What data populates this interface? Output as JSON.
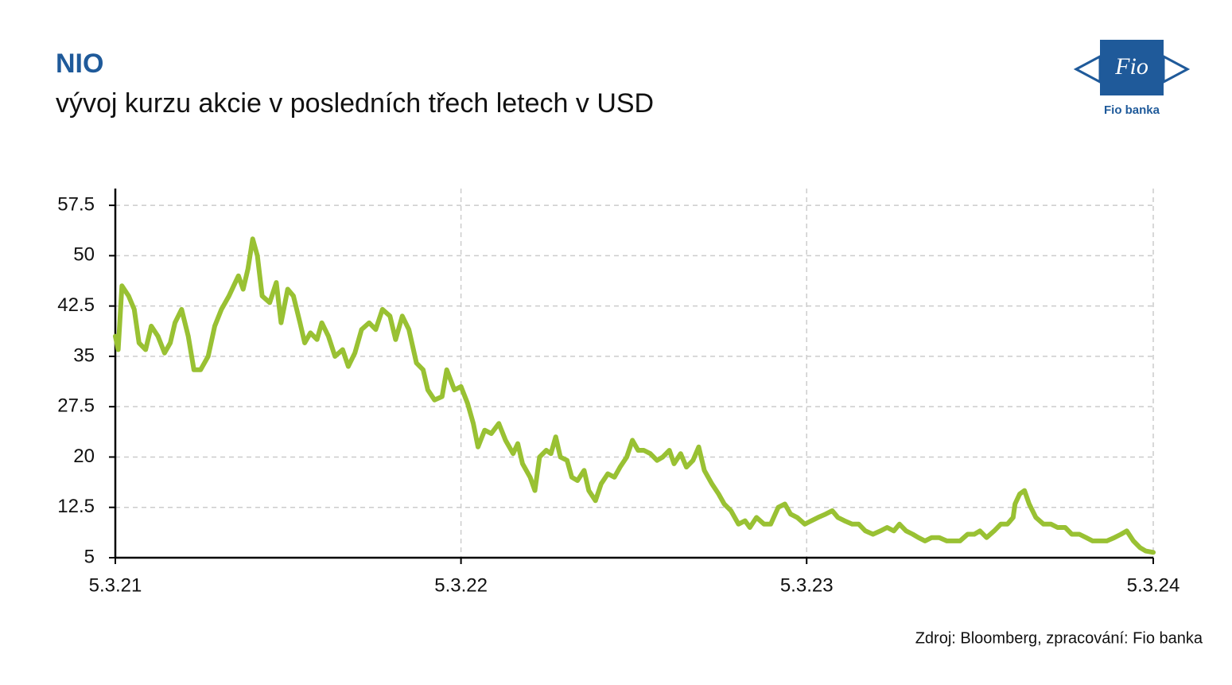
{
  "chart_data": {
    "type": "line",
    "title": "NIO",
    "subtitle": "vývoj kurzu akcie v posledních třech letech v USD",
    "source": "Zdroj: Bloomberg, zpracování: Fio banka",
    "x": [
      0,
      3,
      7,
      14,
      20,
      25,
      32,
      38,
      45,
      52,
      58,
      63,
      70,
      77,
      83,
      90,
      98,
      105,
      112,
      120,
      125,
      130,
      135,
      140,
      145,
      150,
      155,
      163,
      170,
      175,
      182,
      188,
      195,
      200,
      206,
      213,
      218,
      225,
      232,
      240,
      246,
      253,
      260,
      268,
      275,
      282,
      290,
      296,
      303,
      310,
      318,
      325,
      330,
      337,
      345,
      350,
      358,
      365,
      372,
      378,
      383,
      390,
      397,
      405,
      412,
      420,
      425,
      430,
      438,
      443,
      448,
      455,
      460,
      465,
      470,
      477,
      482,
      488,
      495,
      500,
      507,
      513,
      520,
      527,
      533,
      540,
      546,
      552,
      558,
      565,
      572,
      578,
      585,
      590,
      597,
      603,
      610,
      616,
      622,
      630,
      637,
      643,
      650,
      658,
      665,
      670,
      677,
      685,
      692,
      700,
      707,
      713,
      720,
      728,
      735,
      742,
      750,
      757,
      763,
      770,
      778,
      785,
      792,
      800,
      808,
      815,
      822,
      828,
      835,
      842,
      848,
      855,
      862,
      870,
      878,
      885,
      892,
      900,
      907,
      913,
      920,
      928,
      935,
      942,
      948,
      950,
      955,
      960,
      965,
      972,
      980,
      988,
      995,
      1003,
      1010,
      1018,
      1025,
      1032,
      1040,
      1047,
      1055,
      1062,
      1068,
      1075,
      1082,
      1088,
      1096
    ],
    "series": [
      {
        "name": "NIO",
        "color": "#99c133",
        "values": [
          38,
          36,
          45.5,
          44,
          42,
          37,
          36,
          39.5,
          38,
          35.5,
          37,
          40,
          42,
          38,
          33,
          33,
          35,
          39.5,
          42,
          44,
          45.5,
          47,
          45,
          48,
          52.5,
          50,
          44,
          43,
          46,
          40,
          45,
          44,
          40,
          37,
          38.5,
          37.5,
          40,
          38,
          35,
          36,
          33.5,
          35.5,
          39,
          40,
          39,
          42,
          41,
          37.5,
          41,
          39,
          34,
          33,
          30,
          28.5,
          29,
          33,
          30,
          30.5,
          28,
          25,
          21.5,
          24,
          23.5,
          25,
          22.5,
          20.5,
          22,
          19,
          17,
          15,
          20,
          21,
          20.5,
          23,
          20,
          19.5,
          17,
          16.5,
          18,
          15,
          13.5,
          16,
          17.5,
          17,
          18.5,
          20,
          22.5,
          21,
          21,
          20.5,
          19.5,
          20,
          21,
          19,
          20.5,
          18.5,
          19.5,
          21.5,
          18,
          16,
          14.5,
          13,
          12,
          10,
          10.5,
          9.5,
          11,
          10,
          10,
          12.5,
          13,
          11.5,
          11,
          10,
          10.5,
          11,
          11.5,
          12,
          11,
          10.5,
          10,
          10,
          9,
          8.5,
          9,
          9.5,
          9,
          10,
          9,
          8.5,
          8,
          7.5,
          8,
          8,
          7.5,
          7.5,
          7.5,
          8.5,
          8.5,
          9,
          8,
          9,
          10,
          10,
          11,
          13,
          14.5,
          15,
          13,
          11,
          10,
          10,
          9.5,
          9.5,
          8.5,
          8.5,
          8,
          7.5,
          7.5,
          7.5,
          8,
          8.5,
          9,
          7.5,
          6.5,
          6,
          5.8
        ]
      }
    ],
    "xlim": [
      0,
      1096
    ],
    "xticks": [
      {
        "value": 0,
        "label": "5.3.21"
      },
      {
        "value": 365,
        "label": "5.3.22"
      },
      {
        "value": 730,
        "label": "5.3.23"
      },
      {
        "value": 1096,
        "label": "5.3.24"
      }
    ],
    "ylim": [
      5,
      60
    ],
    "yticks": [
      5,
      12.5,
      20,
      27.5,
      35,
      42.5,
      50,
      57.5
    ],
    "grid": true
  },
  "logo": {
    "mark": "Fio",
    "caption": "Fio banka"
  }
}
